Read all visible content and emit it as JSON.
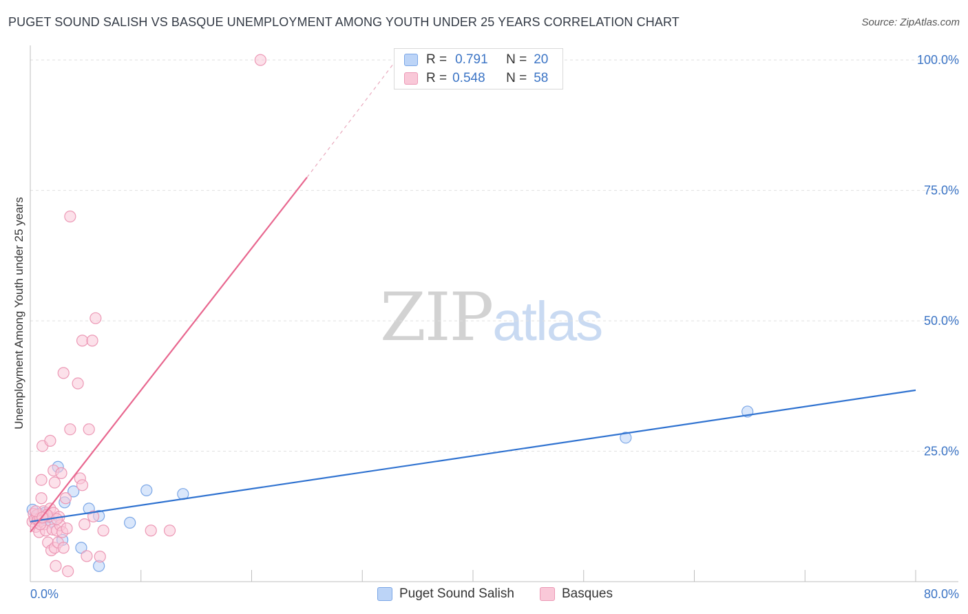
{
  "title": "PUGET SOUND SALISH VS BASQUE UNEMPLOYMENT AMONG YOUTH UNDER 25 YEARS CORRELATION CHART",
  "source": "Source: ZipAtlas.com",
  "watermark": {
    "zip": "ZIP",
    "atlas": "atlas"
  },
  "colors": {
    "blue_fill": "#bcd4f7",
    "blue_stroke": "#7aa6e6",
    "blue_line": "#2f72d0",
    "pink_fill": "#f9c8d8",
    "pink_stroke": "#ec98b5",
    "pink_line": "#e8678f",
    "axis_text": "#3b74c5",
    "grid": "#e0e0e0"
  },
  "legend": {
    "rows": [
      {
        "r_label": "R =",
        "r_value": "0.791",
        "n_label": "N =",
        "n_value": "20"
      },
      {
        "r_label": "R =",
        "r_value": "0.548",
        "n_label": "N =",
        "n_value": "58"
      }
    ]
  },
  "bottom_legend": [
    "Puget Sound Salish",
    "Basques"
  ],
  "chart_data": {
    "type": "scatter",
    "title": "PUGET SOUND SALISH VS BASQUE UNEMPLOYMENT AMONG YOUTH UNDER 25 YEARS CORRELATION CHART",
    "xlabel": "",
    "ylabel": "Unemployment Among Youth under 25 years",
    "xlim": [
      0,
      80
    ],
    "ylim": [
      0,
      102
    ],
    "x_tick_labels": [
      "0.0%",
      "80.0%"
    ],
    "y_ticks": [
      25,
      50,
      75,
      100
    ],
    "y_tick_labels": [
      "25.0%",
      "50.0%",
      "75.0%",
      "100.0%"
    ],
    "grid": true,
    "series": [
      {
        "name": "Puget Sound Salish",
        "color": "blue",
        "points": [
          [
            0.2,
            13.8
          ],
          [
            0.5,
            12.5
          ],
          [
            0.8,
            13.0
          ],
          [
            1.0,
            12.0
          ],
          [
            1.3,
            13.2
          ],
          [
            1.6,
            12.3
          ],
          [
            1.9,
            11.5
          ],
          [
            2.5,
            22.0
          ],
          [
            2.9,
            8.0
          ],
          [
            3.1,
            15.2
          ],
          [
            3.9,
            17.3
          ],
          [
            4.6,
            6.5
          ],
          [
            5.3,
            14.0
          ],
          [
            6.2,
            12.6
          ],
          [
            6.2,
            3.0
          ],
          [
            9.0,
            11.3
          ],
          [
            10.5,
            17.5
          ],
          [
            13.8,
            16.8
          ],
          [
            53.8,
            27.6
          ],
          [
            64.8,
            32.6
          ]
        ],
        "trend": {
          "x0": 0,
          "y0": 11.5,
          "x1": 80,
          "y1": 36.7
        }
      },
      {
        "name": "Basques",
        "color": "pink",
        "points": [
          [
            0.2,
            11.5
          ],
          [
            0.3,
            13.0
          ],
          [
            0.4,
            12.0
          ],
          [
            0.5,
            10.5
          ],
          [
            0.6,
            12.8
          ],
          [
            0.7,
            11.8
          ],
          [
            0.8,
            9.5
          ],
          [
            0.9,
            12.2
          ],
          [
            1.0,
            16.0
          ],
          [
            1.0,
            19.5
          ],
          [
            1.2,
            13.5
          ],
          [
            1.1,
            26.0
          ],
          [
            1.3,
            11.0
          ],
          [
            1.4,
            9.8
          ],
          [
            1.6,
            7.5
          ],
          [
            1.7,
            12.5
          ],
          [
            1.8,
            14.0
          ],
          [
            1.8,
            27.0
          ],
          [
            1.9,
            6.0
          ],
          [
            2.0,
            10.0
          ],
          [
            2.1,
            13.2
          ],
          [
            2.1,
            21.3
          ],
          [
            2.2,
            19.0
          ],
          [
            2.2,
            6.5
          ],
          [
            2.3,
            3.0
          ],
          [
            2.4,
            9.8
          ],
          [
            2.5,
            7.5
          ],
          [
            2.6,
            12.4
          ],
          [
            2.7,
            10.8
          ],
          [
            2.8,
            20.8
          ],
          [
            2.9,
            9.5
          ],
          [
            3.0,
            6.5
          ],
          [
            3.0,
            40.0
          ],
          [
            3.2,
            16.0
          ],
          [
            3.3,
            10.2
          ],
          [
            3.4,
            2.0
          ],
          [
            3.6,
            70.0
          ],
          [
            3.6,
            29.2
          ],
          [
            4.3,
            38.0
          ],
          [
            4.5,
            19.8
          ],
          [
            4.7,
            18.5
          ],
          [
            4.7,
            46.2
          ],
          [
            4.9,
            11.0
          ],
          [
            5.1,
            4.9
          ],
          [
            5.3,
            29.2
          ],
          [
            5.6,
            46.2
          ],
          [
            5.7,
            12.5
          ],
          [
            5.9,
            50.5
          ],
          [
            6.3,
            4.8
          ],
          [
            6.6,
            9.8
          ],
          [
            10.9,
            9.8
          ],
          [
            12.6,
            9.8
          ],
          [
            20.8,
            100.0
          ],
          [
            0.5,
            13.5
          ],
          [
            1.5,
            12.8
          ],
          [
            0.9,
            11.0
          ],
          [
            2.4,
            12.0
          ],
          [
            1.1,
            12.3
          ]
        ],
        "trend": {
          "x0": 0,
          "y0": 9.5,
          "x1": 25,
          "y1": 77.5,
          "dash_to": {
            "x": 33,
            "y": 99.8
          }
        }
      }
    ]
  }
}
